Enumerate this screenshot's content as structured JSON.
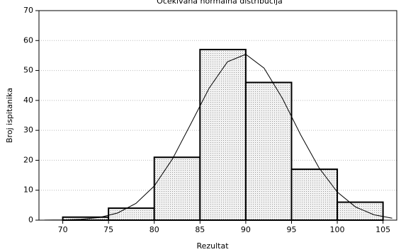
{
  "chart_data": {
    "type": "histogram",
    "title": "Očekivana normalna distribucija",
    "xlabel": "Rezultat",
    "ylabel": "Broj ispitanika",
    "bins": [
      70,
      75,
      80,
      85,
      90,
      95,
      100,
      105
    ],
    "values": [
      1,
      4,
      21,
      57,
      46,
      17,
      6
    ],
    "color": "#e4e4e4",
    "curve": {
      "x": [
        68,
        70,
        72,
        74,
        76,
        78,
        80,
        82,
        84,
        86,
        88,
        90,
        92,
        94,
        96,
        98,
        100,
        102,
        104,
        106
      ],
      "values": [
        0.02,
        0.08,
        0.29,
        0.89,
        2.4,
        5.6,
        11.4,
        20.5,
        32.2,
        44.1,
        52.9,
        55.4,
        50.8,
        40.7,
        28.5,
        17.5,
        9.4,
        4.4,
        1.8,
        0.64
      ]
    },
    "xlim": [
      67.4,
      106.5
    ],
    "xticks": [
      70,
      75,
      80,
      85,
      90,
      95,
      100,
      105
    ],
    "ylim": [
      0,
      70
    ],
    "yticks": [
      0,
      10,
      20,
      30,
      40,
      50,
      60,
      70
    ],
    "grid": true
  }
}
